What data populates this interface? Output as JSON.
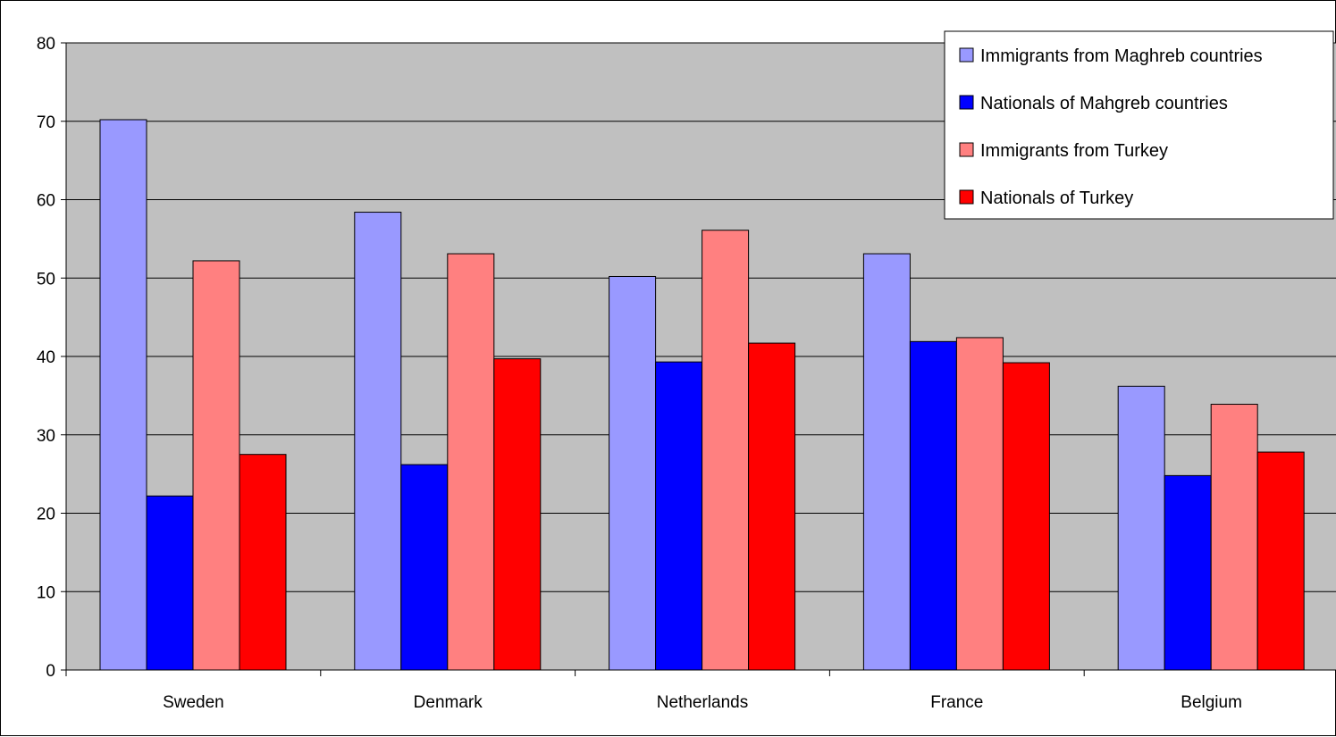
{
  "chart_data": {
    "type": "bar",
    "title": "",
    "xlabel": "",
    "ylabel": "",
    "ylim": [
      0,
      80
    ],
    "yticks": [
      0,
      10,
      20,
      30,
      40,
      50,
      60,
      70,
      80
    ],
    "grid": true,
    "legend_position": "top-right",
    "categories": [
      "Sweden",
      "Denmark",
      "Netherlands",
      "France",
      "Belgium"
    ],
    "series": [
      {
        "name": "Immigrants from Maghreb countries",
        "color": "#9999ff",
        "values": [
          70.2,
          58.4,
          50.2,
          53.1,
          36.2
        ]
      },
      {
        "name": "Nationals of Mahgreb countries",
        "color": "#0000ff",
        "values": [
          22.2,
          26.2,
          39.3,
          41.9,
          24.8
        ]
      },
      {
        "name": "Immigrants from Turkey",
        "color": "#ff8080",
        "values": [
          52.2,
          53.1,
          56.1,
          42.4,
          33.9
        ]
      },
      {
        "name": "Nationals of Turkey",
        "color": "#ff0000",
        "values": [
          27.5,
          39.7,
          41.7,
          39.2,
          27.8
        ]
      }
    ],
    "plot_background": "#c0c0c0"
  }
}
